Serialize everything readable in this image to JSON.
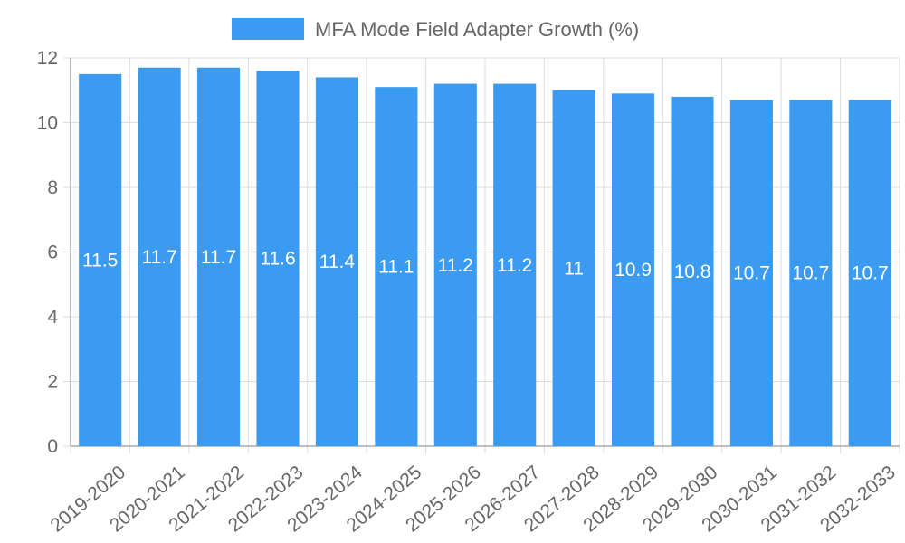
{
  "chart_data": {
    "type": "bar",
    "title": "",
    "xlabel": "",
    "ylabel": "",
    "legend": {
      "label": "MFA Mode Field Adapter Growth (%)",
      "position": "top-center"
    },
    "categories": [
      "2019-2020",
      "2020-2021",
      "2021-2022",
      "2022-2023",
      "2023-2024",
      "2024-2025",
      "2025-2026",
      "2026-2027",
      "2027-2028",
      "2028-2029",
      "2029-2030",
      "2030-2031",
      "2031-2032",
      "2032-2033"
    ],
    "values": [
      11.5,
      11.7,
      11.7,
      11.6,
      11.4,
      11.1,
      11.2,
      11.2,
      11,
      10.9,
      10.8,
      10.7,
      10.7,
      10.7
    ],
    "value_labels": [
      "11.5",
      "11.7",
      "11.7",
      "11.6",
      "11.4",
      "11.1",
      "11.2",
      "11.2",
      "11",
      "10.9",
      "10.8",
      "10.7",
      "10.7",
      "10.7"
    ],
    "ylim": [
      0,
      12
    ],
    "yticks": [
      0,
      2,
      4,
      6,
      8,
      10,
      12
    ],
    "grid": true,
    "colors": {
      "bar": "#3a9bf1",
      "grid": "#dddddd",
      "axis": "#aaaaaa",
      "tick_text": "#666666",
      "label_text": "#ffffff"
    }
  }
}
